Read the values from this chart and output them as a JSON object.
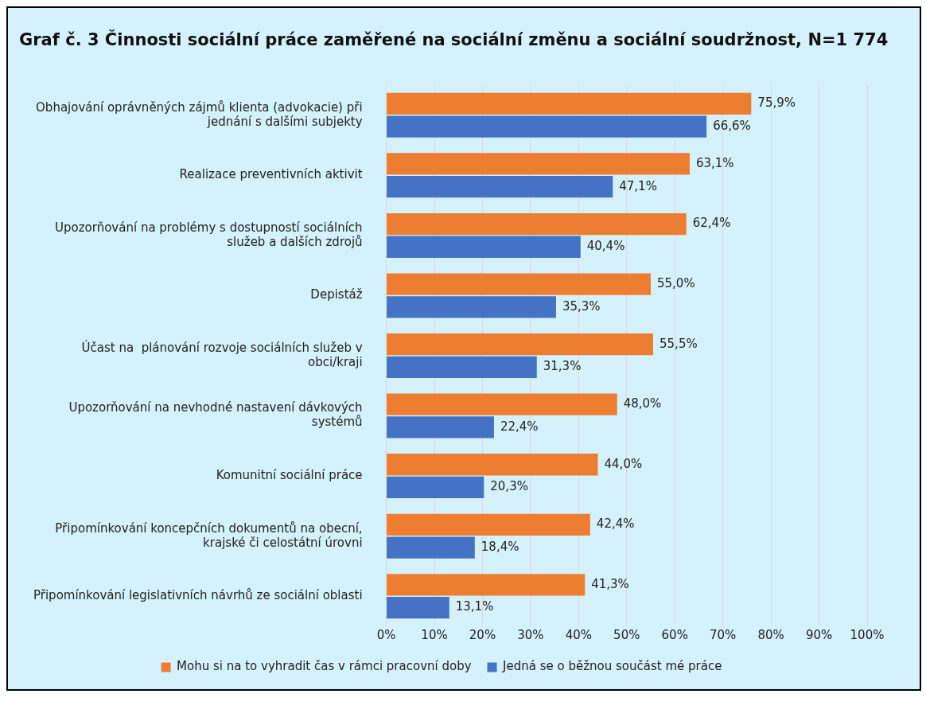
{
  "chart_data": {
    "type": "bar",
    "orientation": "horizontal",
    "title": "Graf č. 3 Činnosti sociální práce zaměřené na sociální změnu a sociální soudržnost, N=1 774",
    "categories": [
      "Obhajování oprávněných zájmů klienta (advokacie) při jednání s dalšími subjekty",
      "Realizace preventivních aktivit",
      "Upozorňování na problémy s dostupností sociálních služeb a dalších zdrojů",
      "Depistáž",
      "Účast na  plánování rozvoje sociálních služeb v obci/kraji",
      "Upozorňování na nevhodné nastavení dávkových systémů",
      "Komunitní sociální práce",
      "Připomínkování koncepčních dokumentů na obecní, krajské či celostátní úrovni",
      "Připomínkování legislativních návrhů ze sociální oblasti"
    ],
    "series": [
      {
        "name": "Mohu si na to vyhradit čas v rámci pracovní doby",
        "color": "#ed7d31",
        "values": [
          75.9,
          63.1,
          62.4,
          55.0,
          55.5,
          48.0,
          44.0,
          42.4,
          41.3
        ],
        "value_labels": [
          "75,9%",
          "63,1%",
          "62,4%",
          "55,0%",
          "55,5%",
          "48,0%",
          "44,0%",
          "42,4%",
          "41,3%"
        ]
      },
      {
        "name": "Jedná se o běžnou součást mé práce",
        "color": "#4472c4",
        "values": [
          66.6,
          47.1,
          40.4,
          35.3,
          31.3,
          22.4,
          20.3,
          18.4,
          13.1
        ],
        "value_labels": [
          "66,6%",
          "47,1%",
          "40,4%",
          "35,3%",
          "31,3%",
          "22,4%",
          "20,3%",
          "18,4%",
          "13,1%"
        ]
      }
    ],
    "xlim": [
      0,
      100
    ],
    "xticks": [
      {
        "value": 0,
        "label": "0%"
      },
      {
        "value": 10,
        "label": "10%"
      },
      {
        "value": 20,
        "label": "20%"
      },
      {
        "value": 30,
        "label": "30%"
      },
      {
        "value": 40,
        "label": "40%"
      },
      {
        "value": 50,
        "label": "50%"
      },
      {
        "value": 60,
        "label": "60%"
      },
      {
        "value": 70,
        "label": "70%"
      },
      {
        "value": 80,
        "label": "80%"
      },
      {
        "value": 90,
        "label": "90%"
      },
      {
        "value": 100,
        "label": "100%"
      }
    ],
    "grid": "x",
    "legend": "bottom"
  }
}
